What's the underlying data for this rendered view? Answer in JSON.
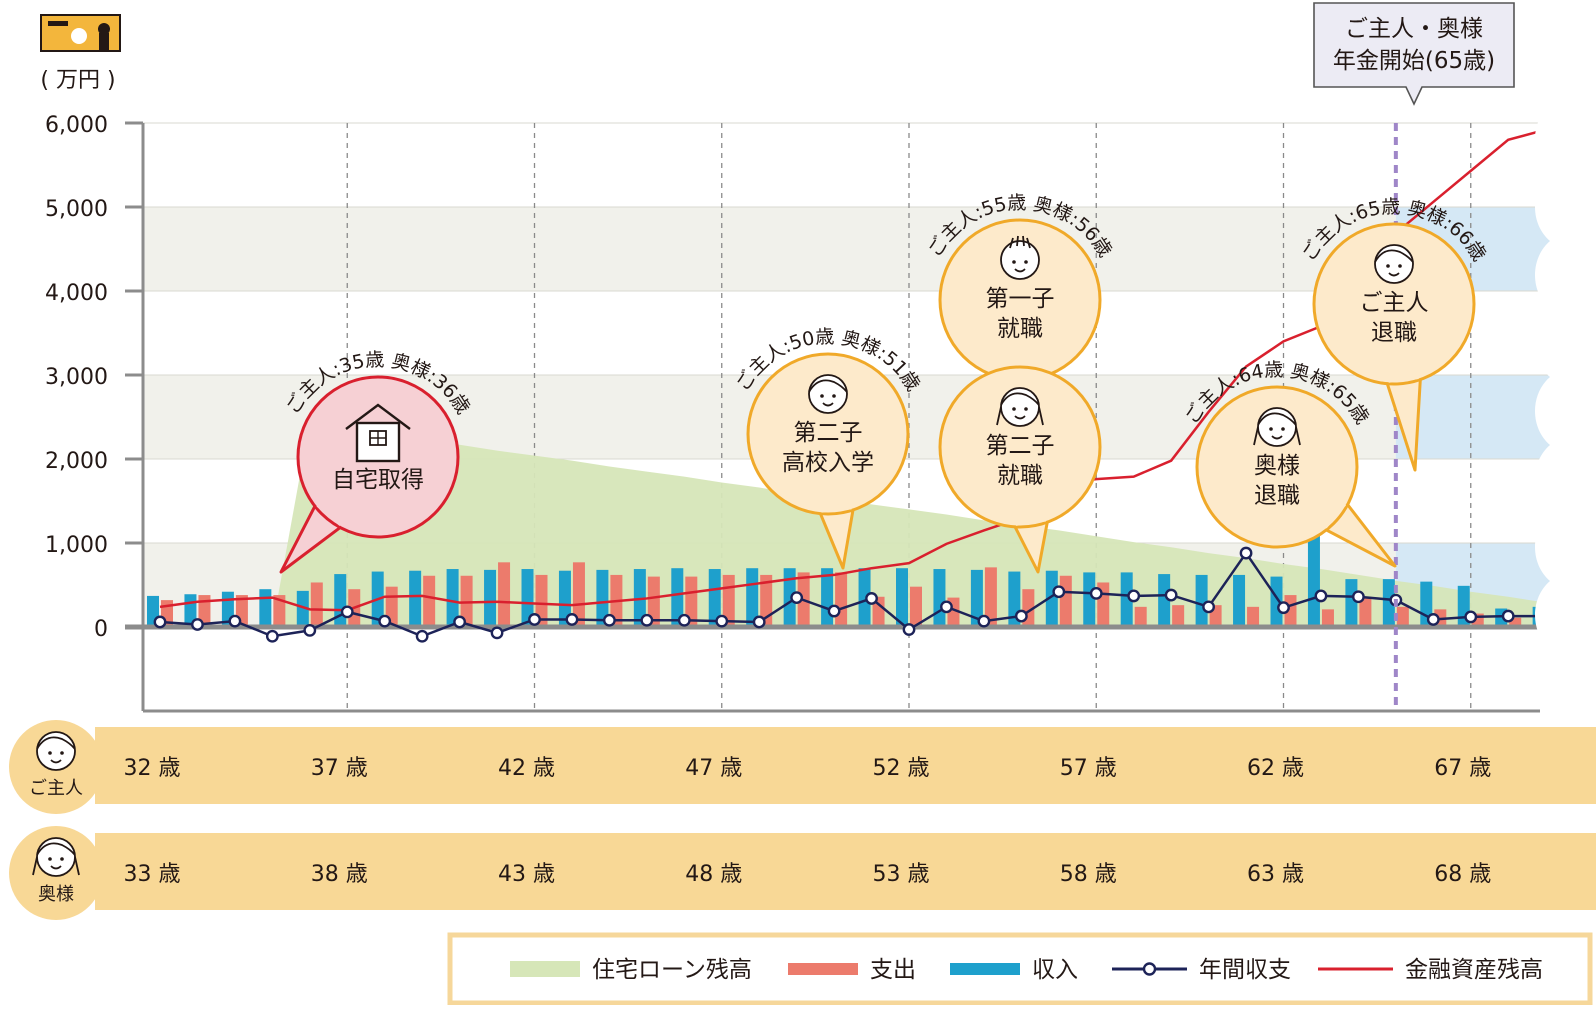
{
  "ui": {
    "unit_label": "( 万円 )",
    "icon": "id-card-icon",
    "pension_note": [
      "ご主人・奥様",
      "年金開始(65歳)"
    ],
    "row_labels": {
      "husband": "ご主人",
      "wife": "奥様"
    }
  },
  "colors": {
    "loan": "#d6e6b8",
    "expense": "#ec7b6c",
    "income": "#1ea0cc",
    "annual": "#1d2358",
    "assets": "#d9202e",
    "age_band": "#f8d896",
    "callout_fill": "#fdeacb",
    "callout_border": "#f0a929",
    "house_fill": "#f6d0d4",
    "house_border": "#d9202e",
    "pension_line": "#9f86c8",
    "shade_blue": "#d5e8f5",
    "band_grey": "#f1f1eb"
  },
  "chart_data": {
    "type": "bar",
    "ylabel": "( 万円 )",
    "ylim": [
      -1000,
      6000
    ],
    "yticks": [
      0,
      1000,
      2000,
      3000,
      4000,
      5000,
      6000
    ],
    "ytick_labels": [
      "0",
      "1,000",
      "2,000",
      "3,000",
      "4,000",
      "5,000",
      "6,000"
    ],
    "grid": "horizontal bands and dashed vertical lines every 5 years",
    "legend_position": "bottom-right",
    "x": [
      32,
      33,
      34,
      35,
      36,
      37,
      38,
      39,
      40,
      41,
      42,
      43,
      44,
      45,
      46,
      47,
      48,
      49,
      50,
      51,
      52,
      53,
      54,
      55,
      56,
      57,
      58,
      59,
      60,
      61,
      62,
      63,
      64,
      65,
      66,
      67,
      68,
      69,
      70
    ],
    "husband_age_labels": [
      "32 歳",
      "37 歳",
      "42 歳",
      "47 歳",
      "52 歳",
      "57 歳",
      "62 歳",
      "67 歳"
    ],
    "husband_age_ticks": [
      32,
      37,
      42,
      47,
      52,
      57,
      62,
      67
    ],
    "wife_age_labels": [
      "33 歳",
      "38 歳",
      "43 歳",
      "48 歳",
      "53 歳",
      "58 歳",
      "63 歳",
      "68 歳"
    ],
    "wife_age_ticks": [
      32,
      37,
      42,
      47,
      52,
      57,
      62,
      67
    ],
    "series": [
      {
        "name": "住宅ローン残高",
        "kind": "area",
        "values": [
          0,
          0,
          0,
          0,
          2450,
          2370,
          2300,
          2240,
          2170,
          2100,
          2040,
          1980,
          1910,
          1850,
          1790,
          1720,
          1660,
          1590,
          1530,
          1460,
          1400,
          1340,
          1270,
          1210,
          1150,
          1080,
          1010,
          950,
          880,
          820,
          750,
          690,
          620,
          550,
          490,
          420,
          360,
          290,
          0
        ]
      },
      {
        "name": "支出",
        "kind": "bar",
        "values": [
          320,
          380,
          380,
          380,
          530,
          450,
          480,
          610,
          610,
          770,
          620,
          770,
          620,
          600,
          600,
          620,
          620,
          650,
          650,
          360,
          480,
          350,
          710,
          450,
          610,
          530,
          240,
          260,
          260,
          240,
          380,
          210,
          360,
          240,
          210,
          160,
          110,
          90,
          110
        ]
      },
      {
        "name": "収入",
        "kind": "bar",
        "values": [
          370,
          390,
          420,
          450,
          430,
          630,
          660,
          670,
          690,
          680,
          690,
          670,
          680,
          690,
          700,
          690,
          700,
          700,
          700,
          700,
          700,
          690,
          680,
          660,
          670,
          650,
          650,
          630,
          620,
          620,
          600,
          1090,
          570,
          570,
          540,
          490,
          220,
          240,
          240
        ]
      },
      {
        "name": "年間収支",
        "kind": "line",
        "values": [
          60,
          30,
          70,
          -110,
          -40,
          180,
          70,
          -110,
          60,
          -70,
          90,
          90,
          80,
          80,
          80,
          70,
          60,
          350,
          190,
          340,
          -30,
          240,
          70,
          130,
          420,
          400,
          370,
          380,
          240,
          880,
          230,
          370,
          360,
          320,
          90,
          120,
          130,
          130,
          -30
        ]
      },
      {
        "name": "金融資産残高",
        "kind": "line",
        "values": [
          240,
          300,
          330,
          350,
          210,
          200,
          360,
          370,
          290,
          300,
          280,
          260,
          300,
          340,
          400,
          460,
          520,
          580,
          620,
          700,
          760,
          990,
          1150,
          1300,
          1710,
          1760,
          1790,
          1980,
          2560,
          3100,
          3400,
          3580,
          4450,
          4690,
          5060,
          5430,
          5800,
          5920,
          6000
        ]
      }
    ],
    "pension_start_age": 65,
    "callouts": [
      {
        "age_label": "ご主人:35歳 奥様:36歳",
        "text": [
          "自宅取得"
        ],
        "icon": "house-icon",
        "style": "house"
      },
      {
        "age_label": "ご主人:50歳 奥様:51歳",
        "text": [
          "第二子",
          "高校入学"
        ],
        "icon": "child-face-icon",
        "style": "normal"
      },
      {
        "age_label": "ご主人:55歳 奥様:56歳",
        "text": [
          "第一子",
          "就職"
        ],
        "icon": "boy-face-icon",
        "style": "normal"
      },
      {
        "age_label": "",
        "text": [
          "第二子",
          "就職"
        ],
        "icon": "girl-face-icon",
        "style": "normal"
      },
      {
        "age_label": "ご主人:64歳 奥様:65歳",
        "text": [
          "奥様",
          "退職"
        ],
        "icon": "wife-face-icon",
        "style": "normal"
      },
      {
        "age_label": "ご主人:65歳 奥様:66歳",
        "text": [
          "ご主人",
          "退職"
        ],
        "icon": "husband-face-icon",
        "style": "normal"
      }
    ]
  }
}
